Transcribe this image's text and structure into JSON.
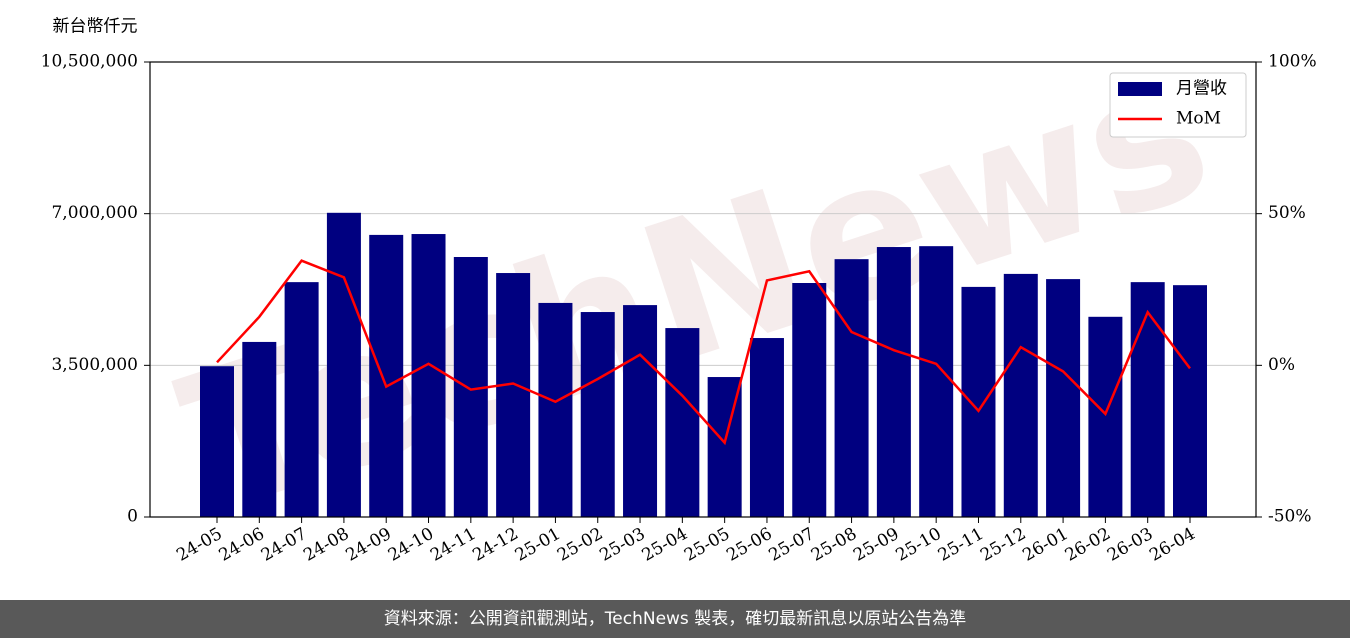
{
  "chart_data": {
    "type": "bar_line",
    "y_label": "新台幣仟元",
    "watermark": "TechNews",
    "categories": [
      "24-05",
      "24-06",
      "24-07",
      "24-08",
      "24-09",
      "24-10",
      "24-11",
      "24-12",
      "25-01",
      "25-02",
      "25-03",
      "25-04",
      "25-05",
      "25-06",
      "25-07",
      "25-08",
      "25-09",
      "25-10",
      "25-11",
      "25-12",
      "26-01",
      "26-02",
      "26-03",
      "26-04"
    ],
    "series": [
      {
        "name": "月營收",
        "type": "bar",
        "color": "#000080",
        "values": [
          3480000,
          4040000,
          5420000,
          7020000,
          6510000,
          6530000,
          6000000,
          5630000,
          4940000,
          4730000,
          4890000,
          4360000,
          3230000,
          4130000,
          5400000,
          5950000,
          6230000,
          6250000,
          5310000,
          5610000,
          5490000,
          4620000,
          5420000,
          5350000
        ]
      },
      {
        "name": "MoM",
        "type": "line",
        "axis": "y2",
        "color": "#ff0000",
        "values": [
          1,
          16,
          34.5,
          29,
          -7,
          0.5,
          -8,
          -6,
          -12,
          -4.5,
          3.5,
          -10,
          -25.5,
          28,
          31,
          11,
          5,
          0.5,
          -15,
          6,
          -2,
          -16,
          17.5,
          -1
        ]
      }
    ],
    "ylim": [
      0,
      10500000
    ],
    "yticks": [
      {
        "value": 0,
        "label": "0"
      },
      {
        "value": 3500000,
        "label": "3,500,000"
      },
      {
        "value": 7000000,
        "label": "7,000,000"
      },
      {
        "value": 10500000,
        "label": "10,500,000"
      }
    ],
    "y2lim": [
      -50,
      100
    ],
    "y2ticks": [
      {
        "value": -50,
        "label": "-50%"
      },
      {
        "value": 0,
        "label": "0%"
      },
      {
        "value": 50,
        "label": "50%"
      },
      {
        "value": 100,
        "label": "100%"
      }
    ],
    "grid": true,
    "legend": "upper right",
    "footer": "資料來源：公開資訊觀測站，TechNews 製表，確切最新訊息以原站公告為準"
  }
}
